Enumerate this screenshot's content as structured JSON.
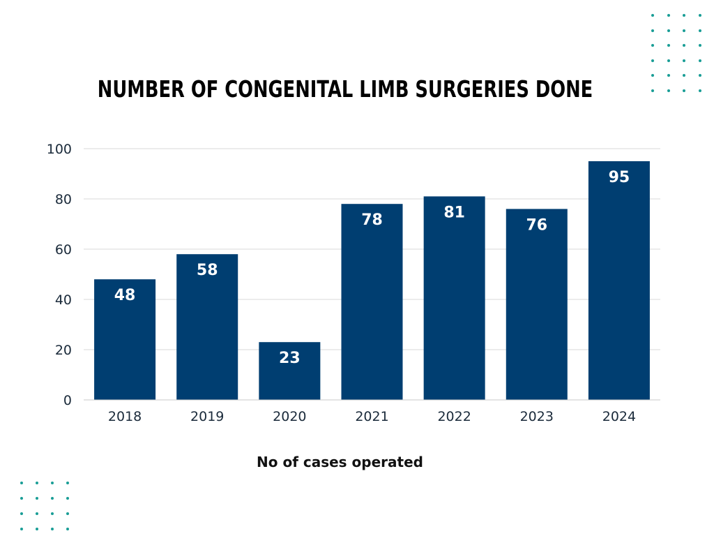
{
  "chart_data": {
    "type": "bar",
    "title": "NUMBER OF CONGENITAL LIMB SURGERIES DONE",
    "xlabel": "No of cases operated",
    "ylabel": "",
    "categories": [
      "2018",
      "2019",
      "2020",
      "2021",
      "2022",
      "2023",
      "2024"
    ],
    "values": [
      48,
      58,
      23,
      78,
      81,
      76,
      95
    ],
    "ylim": [
      0,
      100
    ],
    "yticks": [
      0,
      20,
      40,
      60,
      80,
      100
    ],
    "grid": true,
    "data_labels": true
  },
  "colors": {
    "bar": "#003e71",
    "label_inside": "#ffffff",
    "grid": "#d9d9d9",
    "axis_text": "#1a2a3a",
    "decor_dots": "#1a9e96"
  },
  "decorations": {
    "top_right_dots": "dot-grid",
    "bottom_left_dots": "dot-grid"
  }
}
